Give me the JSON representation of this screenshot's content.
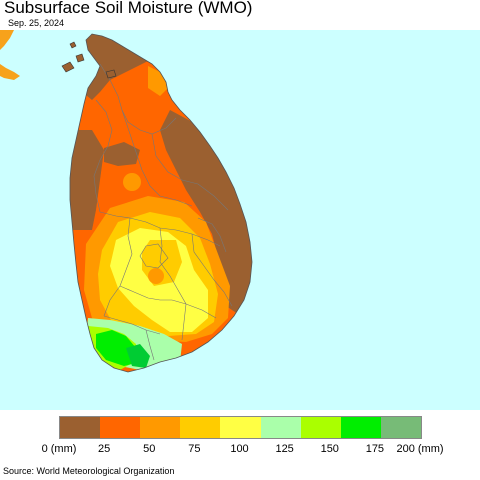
{
  "title": "Subsurface Soil Moisture (WMO)",
  "date": "Sep. 25, 2024",
  "source": "Source: World Meteorological Organization",
  "colors": {
    "ocean": "#ccffff",
    "india_land": "#f7a21b",
    "boundary": "#777777"
  },
  "legend": {
    "swatches": [
      "#9b6030",
      "#ff6600",
      "#ff9900",
      "#ffcc00",
      "#ffff44",
      "#aaffaa",
      "#aaff00",
      "#00ee00",
      "#77bb77"
    ],
    "labels": [
      "0 (mm)",
      "25",
      "50",
      "75",
      "100",
      "125",
      "150",
      "175",
      "200 (mm)"
    ]
  }
}
